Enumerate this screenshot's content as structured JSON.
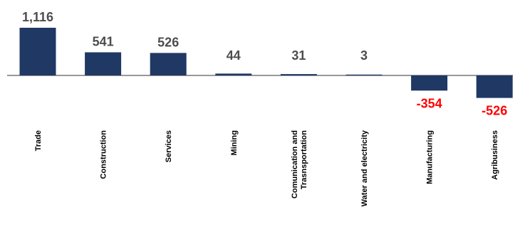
{
  "chart_data": {
    "type": "bar",
    "title": "",
    "xlabel": "",
    "ylabel": "",
    "categories": [
      [
        "Trade"
      ],
      [
        "Construction"
      ],
      [
        "Services"
      ],
      [
        "Mining"
      ],
      [
        "Comunication and",
        "Trasnsportation"
      ],
      [
        "Water and electricity"
      ],
      [
        "Manufacturing"
      ],
      [
        "Agribusiness"
      ]
    ],
    "values": [
      1116,
      541,
      526,
      44,
      31,
      3,
      -354,
      -526
    ],
    "value_labels": [
      "1,116",
      "541",
      "526",
      "44",
      "31",
      "3",
      "-354",
      "-526"
    ],
    "ylim": [
      -526,
      1116
    ],
    "grid": false,
    "legend": "none",
    "colors": {
      "bar": "#1f3864",
      "positive_label": "#4d4d4d",
      "negative_label": "#ff0000",
      "axis": "#333333"
    }
  }
}
